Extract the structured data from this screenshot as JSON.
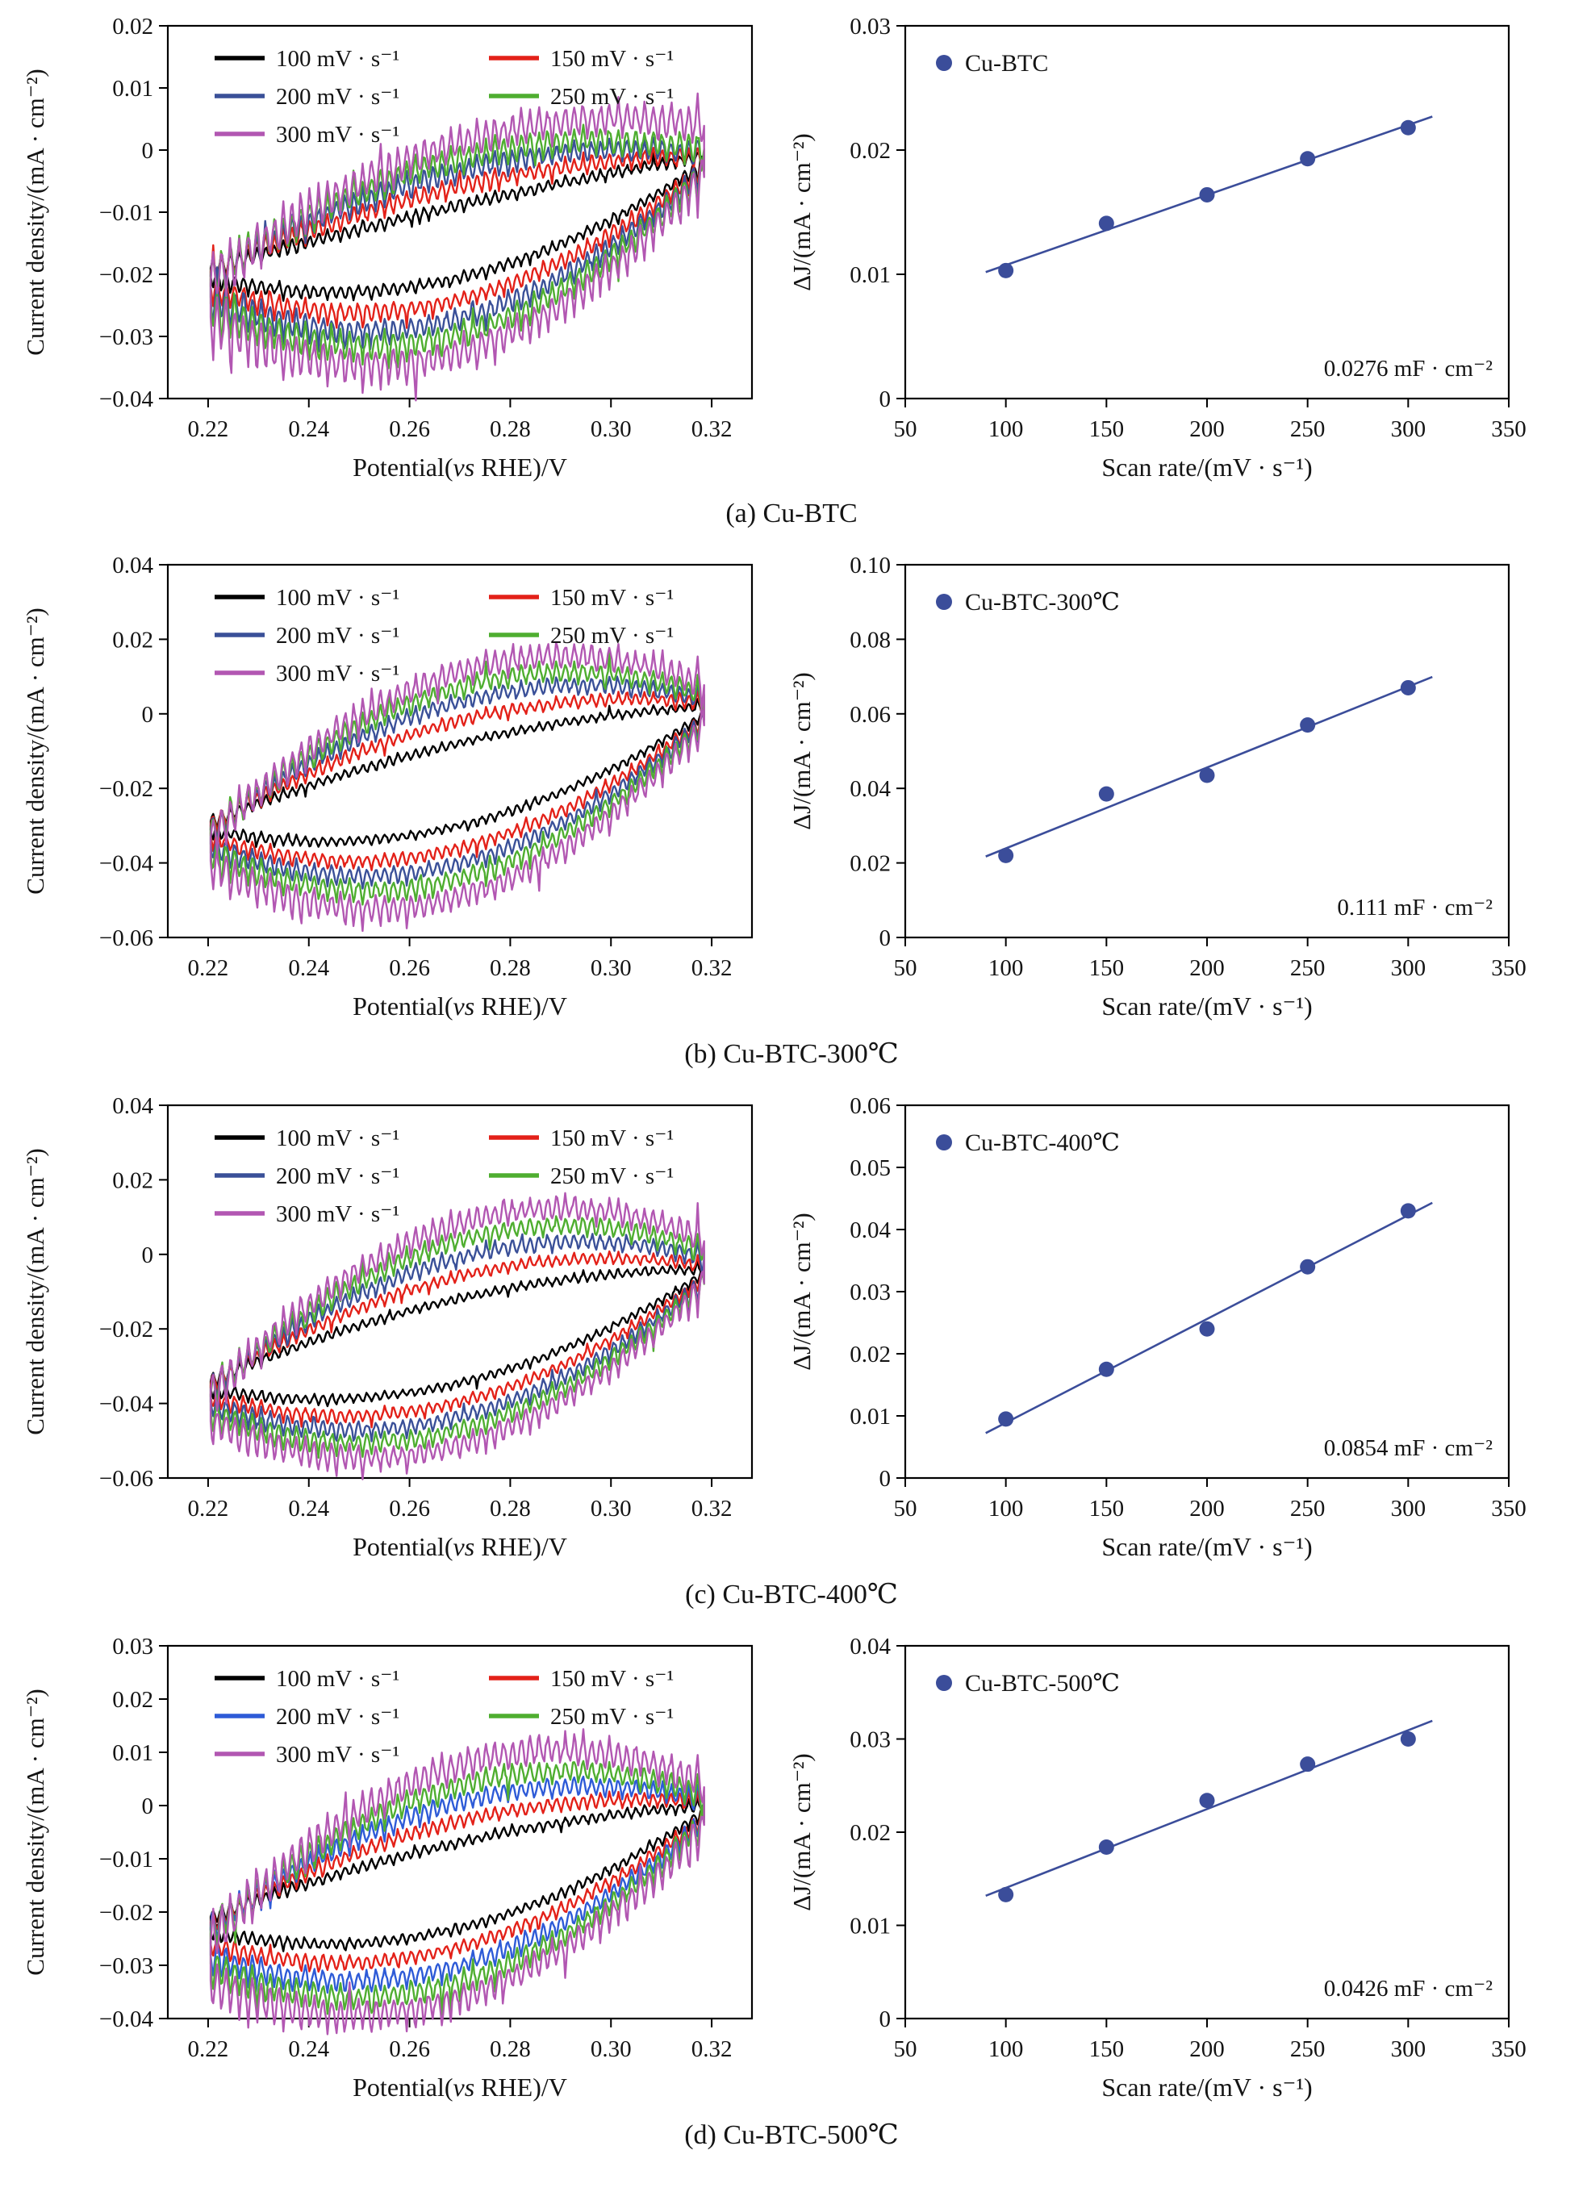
{
  "page": {
    "background": "#ffffff"
  },
  "colors": {
    "axis": "#000000",
    "scatter_marker": "#3b4d9a",
    "fit_line": "#3b4d9a"
  },
  "chart_data": [
    {
      "panel": "a",
      "caption": "(a) Cu-BTC",
      "cv": {
        "type": "line",
        "variant": "cyclic-voltammetry-loops",
        "xlabel_parts": {
          "pre": "Potential(",
          "italic": "vs",
          "post": " RHE)/V"
        },
        "ylabel": "Current density/(mA · cm⁻²)",
        "xlim": [
          0.212,
          0.328
        ],
        "ylim": [
          -0.04,
          0.02
        ],
        "xticks": [
          0.22,
          0.24,
          0.26,
          0.28,
          0.3,
          0.32
        ],
        "xtick_labels": [
          "0.22",
          "0.24",
          "0.26",
          "0.28",
          "0.30",
          "0.32"
        ],
        "yticks": [
          0.02,
          0.01,
          0,
          -0.01,
          -0.02,
          -0.03,
          -0.04
        ],
        "ytick_labels": [
          "0.02",
          "0.01",
          "0",
          "−0.01",
          "−0.02",
          "−0.03",
          "−0.04"
        ],
        "legend_position": "top-left",
        "series": [
          {
            "label": "100 mV · s⁻¹",
            "color": "#000000",
            "upper": [
              -0.019,
              -0.009,
              -0.001
            ],
            "lower": [
              -0.0205,
              -0.0205,
              -0.002
            ],
            "noise": 0.0012
          },
          {
            "label": "150 mV · s⁻¹",
            "color": "#e32119",
            "upper": [
              -0.0195,
              -0.006,
              -0.001
            ],
            "lower": [
              -0.022,
              -0.024,
              -0.0025
            ],
            "noise": 0.0018
          },
          {
            "label": "200 mV · s⁻¹",
            "color": "#3a5098",
            "upper": [
              -0.02,
              -0.0035,
              -0.0005
            ],
            "lower": [
              -0.0235,
              -0.027,
              -0.003
            ],
            "noise": 0.0023
          },
          {
            "label": "250 mV · s⁻¹",
            "color": "#4fae30",
            "upper": [
              -0.0205,
              -0.0015,
              0.0
            ],
            "lower": [
              -0.025,
              -0.0295,
              -0.0035
            ],
            "noise": 0.0028
          },
          {
            "label": "300 mV · s⁻¹",
            "color": "#b257b2",
            "upper": [
              -0.021,
              0.001,
              0.004
            ],
            "lower": [
              -0.027,
              -0.0325,
              -0.004
            ],
            "noise": 0.0035
          }
        ]
      },
      "scatter": {
        "type": "scatter",
        "legend_label": "Cu-BTC",
        "xlabel": "Scan rate/(mV · s⁻¹)",
        "ylabel": "ΔJ/(mA · cm⁻²)",
        "xlim": [
          50,
          350
        ],
        "ylim": [
          0,
          0.03
        ],
        "xticks": [
          50,
          100,
          150,
          200,
          250,
          300,
          350
        ],
        "xtick_labels": [
          "50",
          "100",
          "150",
          "200",
          "250",
          "300",
          "350"
        ],
        "yticks": [
          0,
          0.01,
          0.02,
          0.03
        ],
        "ytick_labels": [
          "0",
          "0.01",
          "0.02",
          "0.03"
        ],
        "x": [
          100,
          150,
          200,
          250,
          300
        ],
        "y": [
          0.0103,
          0.0141,
          0.0164,
          0.0193,
          0.0218
        ],
        "fit": true,
        "annotation": "0.0276 mF · cm⁻²",
        "marker_color": "#3b4d9a"
      }
    },
    {
      "panel": "b",
      "caption": "(b) Cu-BTC-300℃",
      "cv": {
        "type": "line",
        "variant": "cyclic-voltammetry-loops",
        "xlabel_parts": {
          "pre": "Potential(",
          "italic": "vs",
          "post": " RHE)/V"
        },
        "ylabel": "Current density/(mA · cm⁻²)",
        "xlim": [
          0.212,
          0.328
        ],
        "ylim": [
          -0.06,
          0.04
        ],
        "xticks": [
          0.22,
          0.24,
          0.26,
          0.28,
          0.3,
          0.32
        ],
        "xtick_labels": [
          "0.22",
          "0.24",
          "0.26",
          "0.28",
          "0.30",
          "0.32"
        ],
        "yticks": [
          0.04,
          0.02,
          0,
          -0.02,
          -0.04,
          -0.06
        ],
        "ytick_labels": [
          "0.04",
          "0.02",
          "0",
          "−0.02",
          "−0.04",
          "−0.06"
        ],
        "legend_position": "top-left",
        "series": [
          {
            "label": "100 mV · s⁻¹",
            "color": "#000000",
            "upper": [
              -0.029,
              -0.008,
              0.002
            ],
            "lower": [
              -0.031,
              -0.03,
              0.0
            ],
            "noise": 0.0015
          },
          {
            "label": "150 mV · s⁻¹",
            "color": "#e32119",
            "upper": [
              -0.03,
              -0.002,
              0.003
            ],
            "lower": [
              -0.033,
              -0.036,
              -0.001
            ],
            "noise": 0.0022
          },
          {
            "label": "200 mV · s⁻¹",
            "color": "#3a5098",
            "upper": [
              -0.031,
              0.003,
              0.004
            ],
            "lower": [
              -0.035,
              -0.04,
              -0.0015
            ],
            "noise": 0.0028
          },
          {
            "label": "250 mV · s⁻¹",
            "color": "#4fae30",
            "upper": [
              -0.032,
              0.007,
              0.005
            ],
            "lower": [
              -0.037,
              -0.044,
              -0.002
            ],
            "noise": 0.0035
          },
          {
            "label": "300 mV · s⁻¹",
            "color": "#b257b2",
            "upper": [
              -0.033,
              0.011,
              0.008
            ],
            "lower": [
              -0.04,
              -0.049,
              -0.003
            ],
            "noise": 0.0045
          }
        ]
      },
      "scatter": {
        "type": "scatter",
        "legend_label": "Cu-BTC-300℃",
        "xlabel": "Scan rate/(mV · s⁻¹)",
        "ylabel": "ΔJ/(mA · cm⁻²)",
        "xlim": [
          50,
          350
        ],
        "ylim": [
          0,
          0.1
        ],
        "xticks": [
          50,
          100,
          150,
          200,
          250,
          300,
          350
        ],
        "xtick_labels": [
          "50",
          "100",
          "150",
          "200",
          "250",
          "300",
          "350"
        ],
        "yticks": [
          0,
          0.02,
          0.04,
          0.06,
          0.08,
          0.1
        ],
        "ytick_labels": [
          "0",
          "0.02",
          "0.04",
          "0.06",
          "0.08",
          "0.10"
        ],
        "x": [
          100,
          150,
          200,
          250,
          300
        ],
        "y": [
          0.022,
          0.0385,
          0.0435,
          0.057,
          0.067
        ],
        "fit": true,
        "annotation": "0.111 mF · cm⁻²",
        "marker_color": "#3b4d9a"
      }
    },
    {
      "panel": "c",
      "caption": "(c) Cu-BTC-400℃",
      "cv": {
        "type": "line",
        "variant": "cyclic-voltammetry-loops",
        "xlabel_parts": {
          "pre": "Potential(",
          "italic": "vs",
          "post": " RHE)/V"
        },
        "ylabel": "Current density/(mA · cm⁻²)",
        "xlim": [
          0.212,
          0.328
        ],
        "ylim": [
          -0.06,
          0.04
        ],
        "xticks": [
          0.22,
          0.24,
          0.26,
          0.28,
          0.3,
          0.32
        ],
        "xtick_labels": [
          "0.22",
          "0.24",
          "0.26",
          "0.28",
          "0.30",
          "0.32"
        ],
        "yticks": [
          0.04,
          0.02,
          0,
          -0.02,
          -0.04,
          -0.06
        ],
        "ytick_labels": [
          "0.04",
          "0.02",
          "0",
          "−0.02",
          "−0.04",
          "−0.06"
        ],
        "legend_position": "top-left",
        "series": [
          {
            "label": "100 mV · s⁻¹",
            "color": "#000000",
            "upper": [
              -0.034,
              -0.012,
              -0.004
            ],
            "lower": [
              -0.036,
              -0.0345,
              -0.005
            ],
            "noise": 0.0015
          },
          {
            "label": "150 mV · s⁻¹",
            "color": "#e32119",
            "upper": [
              -0.035,
              -0.006,
              -0.003
            ],
            "lower": [
              -0.038,
              -0.0395,
              -0.006
            ],
            "noise": 0.002
          },
          {
            "label": "200 mV · s⁻¹",
            "color": "#3a5098",
            "upper": [
              -0.036,
              -0.001,
              -0.001
            ],
            "lower": [
              -0.04,
              -0.0435,
              -0.007
            ],
            "noise": 0.0028
          },
          {
            "label": "250 mV · s⁻¹",
            "color": "#4fae30",
            "upper": [
              -0.037,
              0.0035,
              0.001
            ],
            "lower": [
              -0.042,
              -0.047,
              -0.0075
            ],
            "noise": 0.0033
          },
          {
            "label": "300 mV · s⁻¹",
            "color": "#b257b2",
            "upper": [
              -0.038,
              0.008,
              0.004
            ],
            "lower": [
              -0.0445,
              -0.051,
              -0.008
            ],
            "noise": 0.0042
          }
        ]
      },
      "scatter": {
        "type": "scatter",
        "legend_label": "Cu-BTC-400℃",
        "xlabel": "Scan rate/(mV · s⁻¹)",
        "ylabel": "ΔJ/(mA · cm⁻²)",
        "xlim": [
          50,
          350
        ],
        "ylim": [
          0,
          0.06
        ],
        "xticks": [
          50,
          100,
          150,
          200,
          250,
          300,
          350
        ],
        "xtick_labels": [
          "50",
          "100",
          "150",
          "200",
          "250",
          "300",
          "350"
        ],
        "yticks": [
          0,
          0.01,
          0.02,
          0.03,
          0.04,
          0.05,
          0.06
        ],
        "ytick_labels": [
          "0",
          "0.01",
          "0.02",
          "0.03",
          "0.04",
          "0.05",
          "0.06"
        ],
        "x": [
          100,
          150,
          200,
          250,
          300
        ],
        "y": [
          0.0095,
          0.0175,
          0.024,
          0.034,
          0.043
        ],
        "fit": true,
        "annotation": "0.0854 mF · cm⁻²",
        "marker_color": "#3b4d9a"
      }
    },
    {
      "panel": "d",
      "caption": "(d) Cu-BTC-500℃",
      "cv": {
        "type": "line",
        "variant": "cyclic-voltammetry-loops",
        "xlabel_parts": {
          "pre": "Potential(",
          "italic": "vs",
          "post": " RHE)/V"
        },
        "ylabel": "Current density/(mA · cm⁻²)",
        "xlim": [
          0.212,
          0.328
        ],
        "ylim": [
          -0.04,
          0.03
        ],
        "xticks": [
          0.22,
          0.24,
          0.26,
          0.28,
          0.3,
          0.32
        ],
        "xtick_labels": [
          "0.22",
          "0.24",
          "0.26",
          "0.28",
          "0.30",
          "0.32"
        ],
        "yticks": [
          0.03,
          0.02,
          0.01,
          0,
          -0.01,
          -0.02,
          -0.03,
          -0.04
        ],
        "ytick_labels": [
          "0.03",
          "0.02",
          "0.01",
          "0",
          "−0.01",
          "−0.02",
          "−0.03",
          "−0.04"
        ],
        "legend_position": "top-left",
        "series": [
          {
            "label": "100 mV · s⁻¹",
            "color": "#000000",
            "upper": [
              -0.021,
              -0.007,
              0.0
            ],
            "lower": [
              -0.0235,
              -0.023,
              -0.001
            ],
            "noise": 0.0012
          },
          {
            "label": "150 mV · s⁻¹",
            "color": "#e32119",
            "upper": [
              -0.022,
              -0.003,
              0.0005
            ],
            "lower": [
              -0.026,
              -0.0265,
              -0.002
            ],
            "noise": 0.0017
          },
          {
            "label": "200 mV · s⁻¹",
            "color": "#2e5bd7",
            "upper": [
              -0.023,
              0.0005,
              0.001
            ],
            "lower": [
              -0.028,
              -0.03,
              -0.0025
            ],
            "noise": 0.0023
          },
          {
            "label": "250 mV · s⁻¹",
            "color": "#4fae30",
            "upper": [
              -0.024,
              0.0035,
              0.002
            ],
            "lower": [
              -0.03,
              -0.033,
              -0.003
            ],
            "noise": 0.0028
          },
          {
            "label": "300 mV · s⁻¹",
            "color": "#b257b2",
            "upper": [
              -0.0255,
              0.0075,
              0.004
            ],
            "lower": [
              -0.033,
              -0.036,
              -0.004
            ],
            "noise": 0.0037
          }
        ]
      },
      "scatter": {
        "type": "scatter",
        "legend_label": "Cu-BTC-500℃",
        "xlabel": "Scan rate/(mV · s⁻¹)",
        "ylabel": "ΔJ/(mA · cm⁻²)",
        "xlim": [
          50,
          350
        ],
        "ylim": [
          0,
          0.04
        ],
        "xticks": [
          50,
          100,
          150,
          200,
          250,
          300,
          350
        ],
        "xtick_labels": [
          "50",
          "100",
          "150",
          "200",
          "250",
          "300",
          "350"
        ],
        "yticks": [
          0,
          0.01,
          0.02,
          0.03,
          0.04
        ],
        "ytick_labels": [
          "0",
          "0.01",
          "0.02",
          "0.03",
          "0.04"
        ],
        "x": [
          100,
          150,
          200,
          250,
          300
        ],
        "y": [
          0.0133,
          0.0184,
          0.0234,
          0.0273,
          0.03
        ],
        "fit": true,
        "annotation": "0.0426 mF · cm⁻²",
        "marker_color": "#3b4d9a"
      }
    }
  ]
}
